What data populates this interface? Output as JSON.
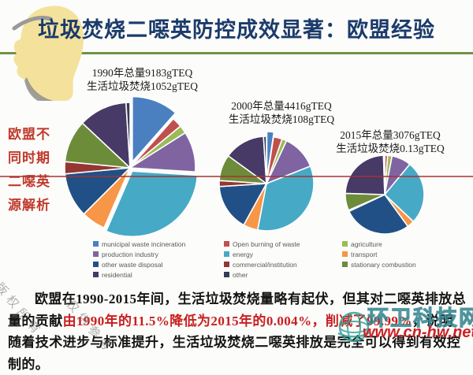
{
  "slide": {
    "title": "垃圾焚烧二噁英防控成效显著：欧盟经验",
    "title_color": "#1b3b6b",
    "accent_green_line_color": "#6f9442",
    "divider_red_line_color": "#a63232"
  },
  "side_note": {
    "lines": [
      "欧盟不",
      "同时期",
      "二噁英",
      "源解析"
    ],
    "color": "#c0392b"
  },
  "categories": [
    {
      "label": "municipal waste incineration",
      "color": "#4a80c0"
    },
    {
      "label": "Open burning of waste",
      "color": "#c0504d"
    },
    {
      "label": "agriculture",
      "color": "#9bbb59"
    },
    {
      "label": "production industry",
      "color": "#8064a2"
    },
    {
      "label": "energy",
      "color": "#46a9c6"
    },
    {
      "label": "transport",
      "color": "#f79646"
    },
    {
      "label": "other waste disposal",
      "color": "#215086"
    },
    {
      "label": "commercial/institution",
      "color": "#943634"
    },
    {
      "label": "stationary combustion",
      "color": "#6d8c3a"
    },
    {
      "label": "residential",
      "color": "#473a66"
    },
    {
      "label": "other",
      "color": "#333f50"
    }
  ],
  "chart_data": [
    {
      "type": "pie",
      "year": 1990,
      "title_lines": [
        "1990年总量9183gTEQ",
        "生活垃圾焚烧1052gTEQ"
      ],
      "total_gTEQ": 9183,
      "municipal_waste_incineration_gTEQ": 1052,
      "values_pct": [
        11.5,
        2.5,
        2.0,
        10.0,
        30.5,
        6.0,
        11.0,
        3.0,
        10.5,
        12.0,
        1.0
      ]
    },
    {
      "type": "pie",
      "year": 2000,
      "title_lines": [
        "2000年总量4416gTEQ",
        "生活垃圾焚烧108gTEQ"
      ],
      "total_gTEQ": 4416,
      "municipal_waste_incineration_gTEQ": 108,
      "values_pct": [
        2.4,
        3.0,
        1.6,
        12.0,
        34.0,
        5.0,
        16.0,
        2.0,
        9.0,
        14.0,
        1.0
      ]
    },
    {
      "type": "pie",
      "year": 2015,
      "title_lines": [
        "2015年总量3076gTEQ",
        "生活垃圾焚烧0.13gTEQ"
      ],
      "total_gTEQ": 3076,
      "municipal_waste_incineration_gTEQ": 0.13,
      "values_pct": [
        0.004,
        1.2,
        1.8,
        8.0,
        26.0,
        3.0,
        28.0,
        0.5,
        7.0,
        24.0,
        0.5
      ]
    }
  ],
  "legend": {
    "columns": [
      [
        0,
        3,
        6,
        9
      ],
      [
        1,
        4,
        7,
        10
      ],
      [
        2,
        5,
        8
      ]
    ]
  },
  "paragraph": {
    "seg1": "欧盟在1990-2015年间，生活垃圾焚烧量略有起伏，但其对二噁英排放总量的贡献",
    "seg2_red": "由1990年的11.5%降低为2015年的0.004%，削减了99.99%",
    "seg3": "，说明随着技术进步与标准提升，生活垃圾焚烧二噁英排放是完全可以得到有效控制的。"
  },
  "watermarks": {
    "copyright_diag_1": "版权所有",
    "copyright_diag_2": "仅供参考",
    "site_name": "环卫科技网",
    "site_url": "www.cn-hw.net"
  }
}
